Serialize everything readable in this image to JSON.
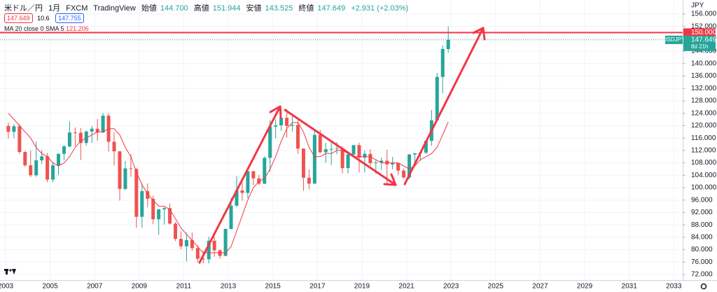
{
  "header": {
    "symbol": "米ドル／円",
    "interval": "1月",
    "source": "FXCM",
    "platform": "TradingView",
    "open_label": "始値",
    "open": "144.700",
    "high_label": "高値",
    "high": "151.944",
    "low_label": "安値",
    "low": "143.525",
    "close_label": "終値",
    "close": "147.649",
    "change": "+2.931 (+2.03%)",
    "sell": "147.649",
    "spread": "10.6",
    "buy": "147.755",
    "ma_label": "MA 20 close 0 SMA 5",
    "currency": "JPY"
  },
  "chart_data": {
    "type": "candlestick",
    "x": [
      2003.125,
      2003.375,
      2003.625,
      2003.875,
      2004.125,
      2004.375,
      2004.625,
      2004.875,
      2005.125,
      2005.375,
      2005.625,
      2005.875,
      2006.125,
      2006.375,
      2006.625,
      2006.875,
      2007.125,
      2007.375,
      2007.625,
      2007.875,
      2008.125,
      2008.375,
      2008.625,
      2008.875,
      2009.125,
      2009.375,
      2009.625,
      2009.875,
      2010.125,
      2010.375,
      2010.625,
      2010.875,
      2011.125,
      2011.375,
      2011.625,
      2011.875,
      2012.125,
      2012.375,
      2012.625,
      2012.875,
      2013.125,
      2013.375,
      2013.625,
      2013.875,
      2014.125,
      2014.375,
      2014.625,
      2014.875,
      2015.125,
      2015.375,
      2015.625,
      2015.875,
      2016.125,
      2016.375,
      2016.625,
      2016.875,
      2017.125,
      2017.375,
      2017.625,
      2017.875,
      2018.125,
      2018.375,
      2018.625,
      2018.875,
      2019.125,
      2019.375,
      2019.625,
      2019.875,
      2020.125,
      2020.375,
      2020.625,
      2020.875,
      2021.125,
      2021.375,
      2021.625,
      2021.875,
      2022.125,
      2022.375,
      2022.625,
      2022.875
    ],
    "open": [
      119.9,
      118.0,
      119.8,
      111.5,
      107.2,
      104.0,
      108.8,
      110.1,
      102.6,
      107.2,
      110.9,
      113.3,
      117.8,
      117.7,
      114.4,
      118.1,
      119.0,
      117.8,
      123.2,
      114.8,
      111.7,
      99.6,
      106.2,
      106.0,
      90.6,
      98.9,
      96.4,
      89.8,
      93.0,
      93.4,
      88.4,
      83.5,
      81.1,
      83.1,
      80.5,
      77.1,
      76.9,
      82.9,
      79.8,
      78.0,
      86.7,
      94.2,
      99.1,
      98.3,
      105.3,
      103.0,
      101.3,
      109.6,
      119.7,
      120.1,
      122.5,
      119.9,
      120.2,
      112.6,
      103.2,
      101.3,
      117.0,
      111.4,
      112.4,
      112.5,
      112.7,
      106.3,
      110.7,
      113.7,
      109.7,
      110.9,
      107.9,
      108.1,
      108.7,
      107.5,
      107.9,
      105.5,
      103.3,
      110.7,
      111.1,
      111.3,
      115.1,
      121.7,
      135.7,
      144.7
    ],
    "high": [
      121.0,
      120.5,
      120.5,
      111.8,
      112.0,
      114.9,
      112.2,
      111.2,
      108.2,
      111.0,
      113.7,
      121.4,
      119.4,
      119.2,
      118.4,
      119.9,
      122.2,
      124.1,
      124.0,
      117.9,
      111.8,
      108.6,
      110.7,
      106.4,
      101.4,
      101.4,
      97.4,
      93.1,
      93.8,
      94.9,
      88.9,
      85.9,
      85.5,
      85.5,
      81.4,
      79.5,
      84.2,
      84.2,
      80.1,
      86.8,
      96.7,
      103.7,
      101.6,
      105.4,
      105.4,
      104.1,
      110.1,
      121.8,
      122.0,
      125.9,
      125.3,
      123.8,
      121.7,
      112.7,
      105.9,
      118.7,
      118.6,
      114.4,
      114.5,
      114.7,
      113.4,
      111.4,
      113.8,
      114.5,
      112.1,
      112.4,
      109.0,
      109.7,
      112.2,
      109.9,
      107.9,
      106.1,
      110.9,
      111.0,
      111.7,
      115.5,
      125.1,
      137.0,
      145.9,
      151.944
    ],
    "low": [
      115.8,
      115.9,
      110.9,
      106.7,
      103.4,
      103.5,
      107.6,
      101.8,
      101.7,
      104.1,
      108.8,
      113.0,
      113.4,
      108.9,
      113.5,
      114.4,
      115.1,
      117.6,
      111.6,
      107.2,
      95.8,
      99.2,
      103.5,
      87.1,
      87.1,
      93.7,
      88.2,
      84.8,
      88.1,
      88.1,
      82.8,
      80.2,
      76.2,
      79.6,
      75.9,
      75.6,
      75.6,
      77.7,
      77.1,
      77.9,
      86.5,
      93.8,
      95.8,
      96.6,
      100.8,
      100.8,
      101.1,
      105.2,
      115.9,
      118.3,
      116.1,
      118.1,
      110.9,
      99.0,
      99.5,
      101.2,
      111.2,
      108.1,
      107.3,
      110.8,
      104.6,
      104.6,
      109.8,
      104.9,
      104.9,
      107.0,
      104.5,
      105.7,
      101.2,
      105.9,
      104.0,
      102.9,
      102.6,
      107.5,
      108.7,
      110.8,
      113.5,
      121.3,
      130.4,
      143.525
    ],
    "close": [
      118.0,
      119.8,
      111.5,
      107.2,
      104.0,
      108.8,
      110.1,
      102.6,
      107.2,
      110.9,
      113.3,
      117.8,
      117.7,
      114.4,
      118.1,
      119.0,
      117.8,
      123.2,
      114.8,
      111.7,
      99.6,
      106.2,
      106.0,
      90.6,
      98.9,
      96.4,
      89.8,
      93.0,
      93.4,
      88.4,
      83.5,
      81.1,
      83.1,
      80.5,
      77.1,
      76.9,
      82.9,
      79.8,
      78.0,
      86.7,
      94.2,
      99.1,
      98.3,
      105.3,
      103.0,
      101.3,
      109.6,
      119.7,
      120.1,
      122.5,
      119.9,
      120.2,
      112.6,
      103.2,
      101.3,
      117.0,
      111.4,
      112.4,
      112.5,
      112.7,
      106.3,
      110.7,
      113.7,
      109.7,
      110.9,
      107.9,
      108.1,
      108.7,
      107.5,
      107.9,
      105.5,
      103.3,
      110.7,
      111.1,
      111.3,
      115.1,
      121.7,
      135.7,
      144.7,
      147.649
    ],
    "up_color": "#26a69a",
    "down_color": "#ef5350",
    "ma": {
      "color": "#f23645",
      "values": [
        124,
        122,
        120,
        118,
        116,
        113,
        111,
        110,
        108,
        107,
        108,
        110,
        113,
        115,
        116,
        117,
        118,
        118,
        119,
        119,
        117,
        113,
        110,
        105,
        101,
        98,
        96,
        94,
        94,
        93,
        90,
        87,
        85,
        83,
        81,
        79,
        79,
        79,
        79,
        79,
        81,
        86,
        91,
        96,
        100,
        102,
        103,
        106,
        110,
        115,
        119,
        121,
        121,
        118,
        113,
        110,
        110,
        111,
        111,
        112,
        112,
        111,
        110,
        110,
        110,
        110,
        109,
        108,
        108,
        108,
        108,
        107,
        106,
        107,
        109,
        110,
        111,
        113,
        117,
        121.206
      ]
    },
    "hline": {
      "value": 150,
      "label": "150.000",
      "color": "#f23645"
    },
    "last_price": {
      "symbol": "USDJPY",
      "value": 147.649,
      "countdown": "8d 21h",
      "color": "#26a69a"
    },
    "xlim": [
      2002.75,
      2033.4
    ],
    "xticks": [
      2003,
      2005,
      2007,
      2009,
      2011,
      2013,
      2015,
      2017,
      2019,
      2021,
      2023,
      2025,
      2027,
      2029,
      2031,
      2033
    ],
    "ylim": [
      70.2,
      160.5
    ],
    "yticks": [
      {
        "value": 72,
        "label": "72.000"
      },
      {
        "value": 76,
        "label": "76.000"
      },
      {
        "value": 80,
        "label": "80.000"
      },
      {
        "value": 84,
        "label": "84.000"
      },
      {
        "value": 88,
        "label": "88.000"
      },
      {
        "value": 92,
        "label": "92.000"
      },
      {
        "value": 96,
        "label": "96.000"
      },
      {
        "value": 100,
        "label": "100.000"
      },
      {
        "value": 104,
        "label": "104.000"
      },
      {
        "value": 108,
        "label": "108.000"
      },
      {
        "value": 112,
        "label": "112.000"
      },
      {
        "value": 116,
        "label": "116.000"
      },
      {
        "value": 120,
        "label": "120.000"
      },
      {
        "value": 124,
        "label": "124.000"
      },
      {
        "value": 128,
        "label": "128.000"
      },
      {
        "value": 132,
        "label": "132.000"
      },
      {
        "value": 136,
        "label": "136.000"
      },
      {
        "value": 140,
        "label": "140.000"
      },
      {
        "value": 144,
        "label": "144.000"
      },
      {
        "value": 148,
        "label": "148.000"
      },
      {
        "value": 152,
        "label": "152.000"
      },
      {
        "value": 156,
        "label": "156.000"
      }
    ],
    "grid": true
  }
}
